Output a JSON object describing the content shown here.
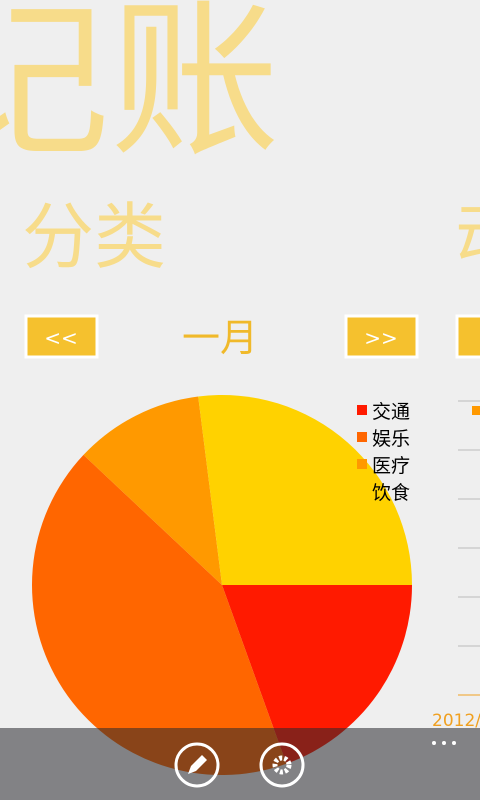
{
  "app_title": "记账",
  "sections": [
    "分类",
    "动"
  ],
  "buttons": {
    "prev": "<<",
    "next": ">>"
  },
  "month": "一月",
  "date_label": "2012/",
  "chart_data": {
    "type": "pie",
    "categories": [
      "交通",
      "娱乐",
      "医疗",
      "饮食"
    ],
    "values": [
      19.5,
      42.5,
      11,
      27
    ],
    "colors": [
      "#ff1a00",
      "#ff6600",
      "#ff9900",
      "#ffd200"
    ]
  }
}
